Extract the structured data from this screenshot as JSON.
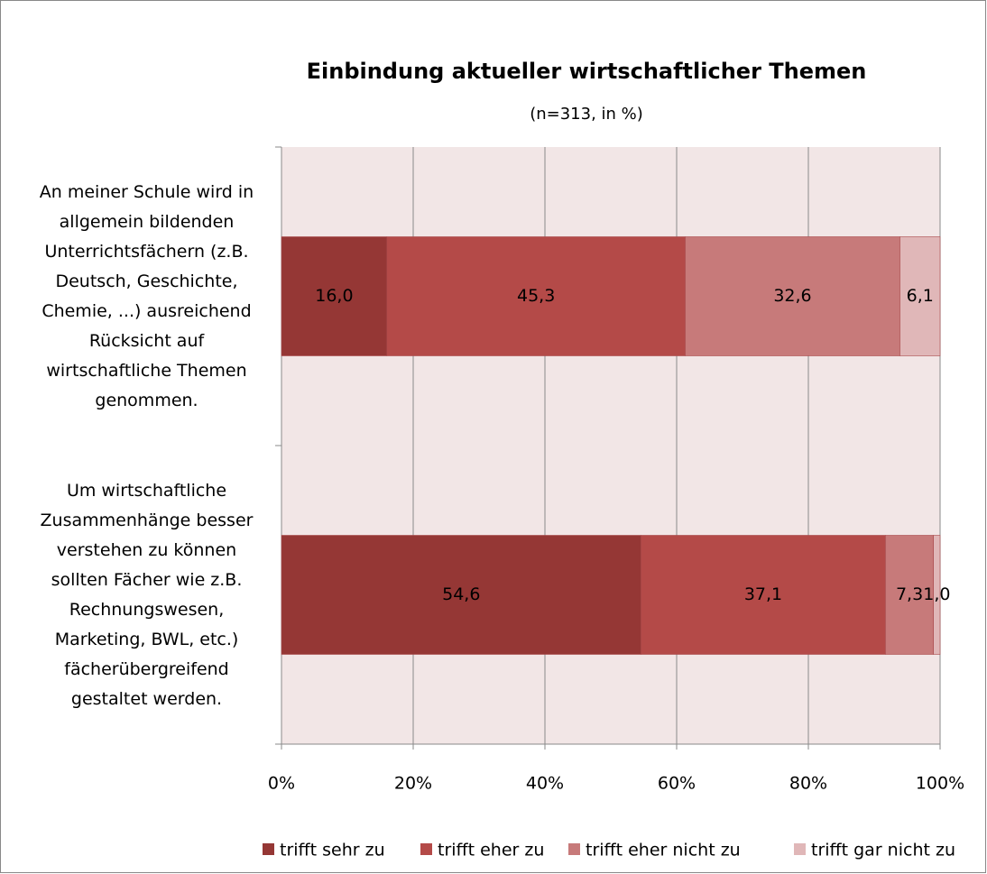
{
  "chart_data": {
    "type": "stacked-bar-horizontal",
    "title": "Einbindung aktueller wirtschaftlicher Themen",
    "subtitle": "(n=313, in %)",
    "categories": [
      "An meiner Schule wird in allgemein bildenden Unterrichtsfächern (z.B. Deutsch, Geschichte, Chemie, ...) ausreichend Rücksicht auf wirtschaftliche Themen genommen.",
      "Um wirtschaftliche Zusammenhänge besser verstehen zu können sollten Fächer wie z.B. Rechnungswesen, Marketing, BWL, etc.) fächerübergreifend gestaltet werden."
    ],
    "series": [
      {
        "name": "trifft sehr zu",
        "color": "#953735",
        "values": [
          16.0,
          54.6
        ],
        "value_labels": [
          "16,0",
          "54,6"
        ]
      },
      {
        "name": "trifft eher zu",
        "color": "#b44a48",
        "values": [
          45.3,
          37.1
        ],
        "value_labels": [
          "45,3",
          "37,1"
        ]
      },
      {
        "name": "trifft eher nicht zu",
        "color": "#c77a7a",
        "values": [
          32.6,
          7.3
        ],
        "value_labels": [
          "32,6",
          "7,3"
        ]
      },
      {
        "name": "trifft gar nicht zu",
        "color": "#e0b7b8",
        "values": [
          6.1,
          1.0
        ],
        "value_labels": [
          "6,1",
          "1,0"
        ]
      }
    ],
    "xlim": [
      0,
      100
    ],
    "xticks": [
      {
        "value": 0,
        "label": "0%"
      },
      {
        "value": 20,
        "label": "20%"
      },
      {
        "value": 40,
        "label": "40%"
      },
      {
        "value": 60,
        "label": "60%"
      },
      {
        "value": 80,
        "label": "80%"
      },
      {
        "value": 100,
        "label": "100%"
      }
    ],
    "grid": true,
    "legend": "bottom"
  }
}
